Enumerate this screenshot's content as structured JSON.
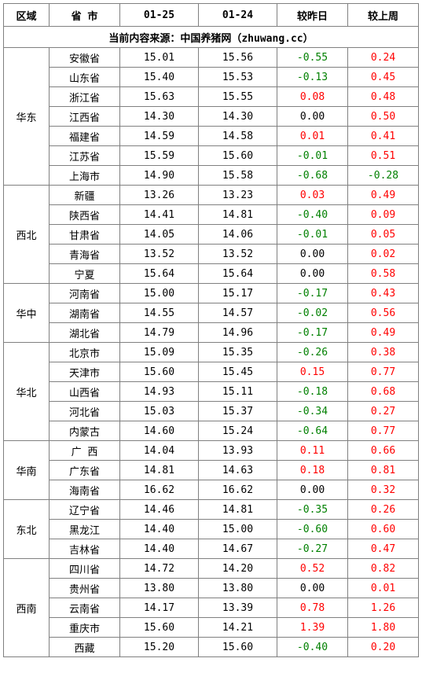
{
  "headers": {
    "region": "区域",
    "province": "省 市",
    "date1": "01-25",
    "date2": "01-24",
    "vs_yesterday": "较昨日",
    "vs_lastweek": "较上周"
  },
  "source_line": "当前内容来源：中国养猪网（zhuwang.cc）",
  "colors": {
    "positive": "#ff0000",
    "negative": "#008000",
    "zero": "#000000",
    "border": "#808080"
  },
  "regions": [
    {
      "name": "华东",
      "rows": [
        {
          "prov": "安徽省",
          "d1": "15.01",
          "d2": "15.56",
          "dy": "-0.55",
          "dw": "0.24"
        },
        {
          "prov": "山东省",
          "d1": "15.40",
          "d2": "15.53",
          "dy": "-0.13",
          "dw": "0.45"
        },
        {
          "prov": "浙江省",
          "d1": "15.63",
          "d2": "15.55",
          "dy": "0.08",
          "dw": "0.48"
        },
        {
          "prov": "江西省",
          "d1": "14.30",
          "d2": "14.30",
          "dy": "0.00",
          "dw": "0.50"
        },
        {
          "prov": "福建省",
          "d1": "14.59",
          "d2": "14.58",
          "dy": "0.01",
          "dw": "0.41"
        },
        {
          "prov": "江苏省",
          "d1": "15.59",
          "d2": "15.60",
          "dy": "-0.01",
          "dw": "0.51"
        },
        {
          "prov": "上海市",
          "d1": "14.90",
          "d2": "15.58",
          "dy": "-0.68",
          "dw": "-0.28"
        }
      ]
    },
    {
      "name": "西北",
      "rows": [
        {
          "prov": "新疆",
          "d1": "13.26",
          "d2": "13.23",
          "dy": "0.03",
          "dw": "0.49"
        },
        {
          "prov": "陕西省",
          "d1": "14.41",
          "d2": "14.81",
          "dy": "-0.40",
          "dw": "0.09"
        },
        {
          "prov": "甘肃省",
          "d1": "14.05",
          "d2": "14.06",
          "dy": "-0.01",
          "dw": "0.05"
        },
        {
          "prov": "青海省",
          "d1": "13.52",
          "d2": "13.52",
          "dy": "0.00",
          "dw": "0.02"
        },
        {
          "prov": "宁夏",
          "d1": "15.64",
          "d2": "15.64",
          "dy": "0.00",
          "dw": "0.58"
        }
      ]
    },
    {
      "name": "华中",
      "rows": [
        {
          "prov": "河南省",
          "d1": "15.00",
          "d2": "15.17",
          "dy": "-0.17",
          "dw": "0.43"
        },
        {
          "prov": "湖南省",
          "d1": "14.55",
          "d2": "14.57",
          "dy": "-0.02",
          "dw": "0.56"
        },
        {
          "prov": "湖北省",
          "d1": "14.79",
          "d2": "14.96",
          "dy": "-0.17",
          "dw": "0.49"
        }
      ]
    },
    {
      "name": "华北",
      "rows": [
        {
          "prov": "北京市",
          "d1": "15.09",
          "d2": "15.35",
          "dy": "-0.26",
          "dw": "0.38"
        },
        {
          "prov": "天津市",
          "d1": "15.60",
          "d2": "15.45",
          "dy": "0.15",
          "dw": "0.77"
        },
        {
          "prov": "山西省",
          "d1": "14.93",
          "d2": "15.11",
          "dy": "-0.18",
          "dw": "0.68"
        },
        {
          "prov": "河北省",
          "d1": "15.03",
          "d2": "15.37",
          "dy": "-0.34",
          "dw": "0.27"
        },
        {
          "prov": "内蒙古",
          "d1": "14.60",
          "d2": "15.24",
          "dy": "-0.64",
          "dw": "0.77"
        }
      ]
    },
    {
      "name": "华南",
      "rows": [
        {
          "prov": "广 西",
          "d1": "14.04",
          "d2": "13.93",
          "dy": "0.11",
          "dw": "0.66"
        },
        {
          "prov": "广东省",
          "d1": "14.81",
          "d2": "14.63",
          "dy": "0.18",
          "dw": "0.81"
        },
        {
          "prov": "海南省",
          "d1": "16.62",
          "d2": "16.62",
          "dy": "0.00",
          "dw": "0.32"
        }
      ]
    },
    {
      "name": "东北",
      "rows": [
        {
          "prov": "辽宁省",
          "d1": "14.46",
          "d2": "14.81",
          "dy": "-0.35",
          "dw": "0.26"
        },
        {
          "prov": "黑龙江",
          "d1": "14.40",
          "d2": "15.00",
          "dy": "-0.60",
          "dw": "0.60"
        },
        {
          "prov": "吉林省",
          "d1": "14.40",
          "d2": "14.67",
          "dy": "-0.27",
          "dw": "0.47"
        }
      ]
    },
    {
      "name": "西南",
      "rows": [
        {
          "prov": "四川省",
          "d1": "14.72",
          "d2": "14.20",
          "dy": "0.52",
          "dw": "0.82"
        },
        {
          "prov": "贵州省",
          "d1": "13.80",
          "d2": "13.80",
          "dy": "0.00",
          "dw": "0.01"
        },
        {
          "prov": "云南省",
          "d1": "14.17",
          "d2": "13.39",
          "dy": "0.78",
          "dw": "1.26"
        },
        {
          "prov": "重庆市",
          "d1": "15.60",
          "d2": "14.21",
          "dy": "1.39",
          "dw": "1.80"
        },
        {
          "prov": "西藏",
          "d1": "15.20",
          "d2": "15.60",
          "dy": "-0.40",
          "dw": "0.20"
        }
      ]
    }
  ]
}
